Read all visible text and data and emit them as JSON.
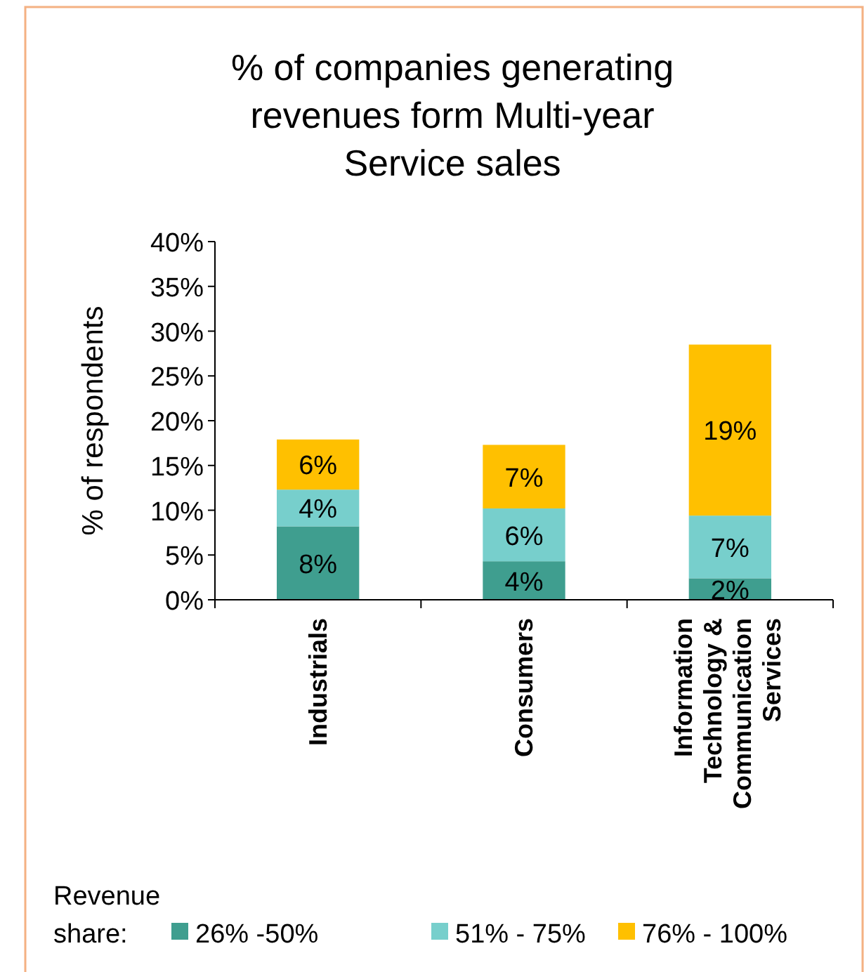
{
  "chart_data": {
    "type": "bar",
    "title": "% of companies generating revenues form Multi-year Service sales",
    "ylabel": "% of respondents",
    "legend_title": "Revenue share:",
    "categories": [
      "Industrials",
      "Consumers",
      "Information Technology & Communication Services"
    ],
    "stacked": true,
    "legend": "bottom",
    "ylim": [
      0,
      40
    ],
    "yticks": [
      {
        "value": 0,
        "label": "0%"
      },
      {
        "value": 5,
        "label": "5%"
      },
      {
        "value": 10,
        "label": "10%"
      },
      {
        "value": 15,
        "label": "15%"
      },
      {
        "value": 20,
        "label": "20%"
      },
      {
        "value": 25,
        "label": "25%"
      },
      {
        "value": 30,
        "label": "30%"
      },
      {
        "value": 35,
        "label": "35%"
      },
      {
        "value": 40,
        "label": "40%"
      }
    ],
    "series": [
      {
        "name": "26% -50%",
        "color": "#3f9e8f",
        "values": [
          8.2,
          4.3,
          2.4
        ],
        "value_labels": [
          "8%",
          "4%",
          "2%"
        ]
      },
      {
        "name": "51% - 75%",
        "color": "#77cfcc",
        "values": [
          4.1,
          5.9,
          7.0
        ],
        "value_labels": [
          "4%",
          "6%",
          "7%"
        ]
      },
      {
        "name": "76% - 100%",
        "color": "#ffc000",
        "values": [
          5.6,
          7.1,
          19.1
        ],
        "value_labels": [
          "6%",
          "7%",
          "19%"
        ]
      }
    ]
  }
}
